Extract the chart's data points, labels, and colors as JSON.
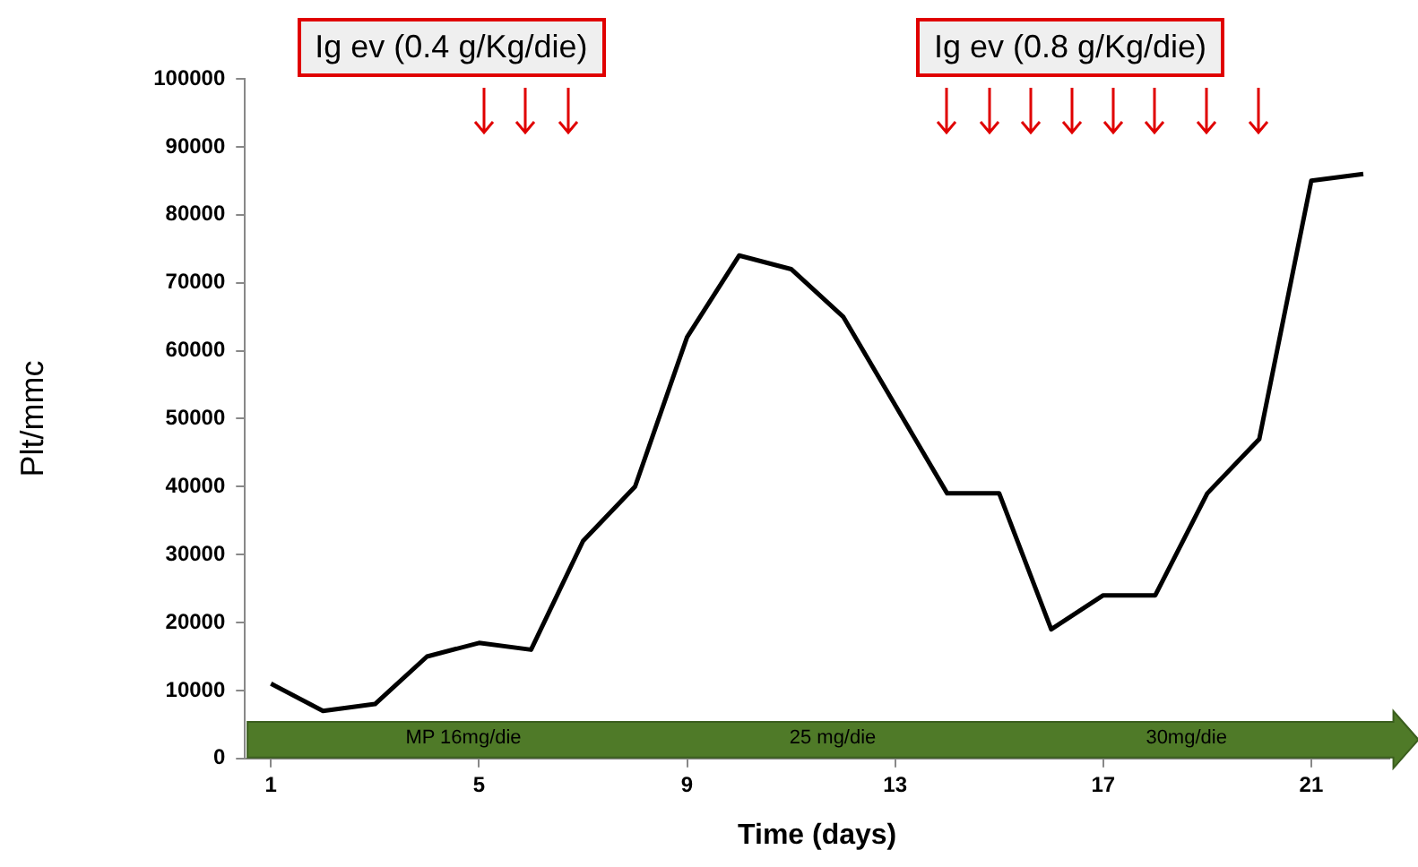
{
  "chart_data": {
    "type": "line",
    "xlabel": "Time (days)",
    "ylabel": "Plt/mmc",
    "x": [
      1,
      2,
      3,
      4,
      5,
      6,
      7,
      8,
      9,
      10,
      11,
      12,
      13,
      14,
      15,
      16,
      17,
      18,
      19,
      20,
      21,
      22
    ],
    "series": [
      {
        "color": "#000000",
        "values": [
          11000,
          7000,
          8000,
          15000,
          17000,
          16000,
          32000,
          40000,
          62000,
          74000,
          72000,
          65000,
          52000,
          39000,
          39000,
          19000,
          24000,
          24000,
          39000,
          47000,
          85000,
          86000
        ]
      }
    ],
    "xlim": [
      0.5,
      22.5
    ],
    "xticks": [
      1,
      5,
      9,
      13,
      17,
      21
    ],
    "ylim": [
      0,
      100000
    ],
    "yticks": [
      0,
      10000,
      20000,
      30000,
      40000,
      50000,
      60000,
      70000,
      80000,
      90000,
      100000
    ],
    "grid": false,
    "legend": false,
    "marker": "none",
    "line_style": "solid",
    "annotations": [
      "Ig ev (0.4 g/Kg/die)",
      "Ig ev (0.8 g/Kg/die)",
      "MP  16mg/die",
      "25 mg/die",
      "30mg/die"
    ]
  }
}
